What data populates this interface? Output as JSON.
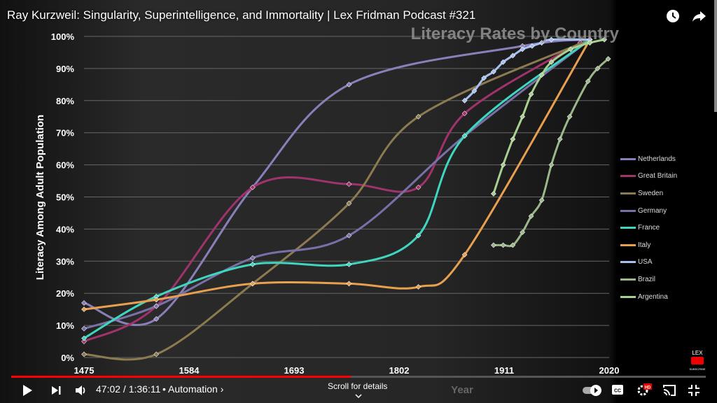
{
  "video_title": "Ray Kurzweil: Singularity, Superintelligence, and Immortality | Lex Fridman Podcast #321",
  "player": {
    "time": "47:02 / 1:36:11",
    "chapter": "• Automation ›",
    "scroll_hint": "Scroll for details",
    "progress": 0.489,
    "lex_badge": "LEX",
    "subscribe": "SUBSCRIBE"
  },
  "chart_data": {
    "type": "line",
    "title": "Literacy Rates by Country",
    "xlabel": "Year",
    "ylabel": "Literacy Among Adult Population",
    "xlim": [
      1475,
      2020
    ],
    "ylim": [
      0,
      100
    ],
    "xticks": [
      "1475",
      "1584",
      "1693",
      "1802",
      "1911",
      "2020"
    ],
    "yticks": [
      "0%",
      "10%",
      "20%",
      "30%",
      "40%",
      "50%",
      "60%",
      "70%",
      "80%",
      "90%",
      "100%"
    ],
    "legend": "right",
    "series": [
      {
        "name": "Netherlands",
        "color": "#8a7fb8",
        "points": [
          [
            1475,
            17
          ],
          [
            1550,
            12
          ],
          [
            1650,
            53
          ],
          [
            1750,
            85
          ],
          [
            1930,
            97
          ],
          [
            2000,
            99
          ]
        ]
      },
      {
        "name": "Great Britain",
        "color": "#a0336b",
        "points": [
          [
            1475,
            5
          ],
          [
            1550,
            16
          ],
          [
            1650,
            53
          ],
          [
            1750,
            54
          ],
          [
            1822,
            53
          ],
          [
            1870,
            76
          ],
          [
            1990,
            98
          ]
        ]
      },
      {
        "name": "Sweden",
        "color": "#8c7a50",
        "points": [
          [
            1475,
            1
          ],
          [
            1550,
            1
          ],
          [
            1650,
            23
          ],
          [
            1750,
            48
          ],
          [
            1822,
            75
          ],
          [
            2000,
            99
          ]
        ]
      },
      {
        "name": "Germany",
        "color": "#7a70a8",
        "points": [
          [
            1475,
            9
          ],
          [
            1550,
            16
          ],
          [
            1650,
            31
          ],
          [
            1750,
            38
          ],
          [
            1870,
            69
          ],
          [
            2000,
            99
          ]
        ]
      },
      {
        "name": "France",
        "color": "#3fd6c0",
        "points": [
          [
            1475,
            6
          ],
          [
            1550,
            19
          ],
          [
            1650,
            29
          ],
          [
            1750,
            29
          ],
          [
            1822,
            38
          ],
          [
            1870,
            69
          ],
          [
            2000,
            99
          ]
        ]
      },
      {
        "name": "Italy",
        "color": "#e8a050",
        "points": [
          [
            1475,
            15
          ],
          [
            1550,
            18
          ],
          [
            1650,
            23
          ],
          [
            1750,
            23
          ],
          [
            1822,
            22
          ],
          [
            1870,
            32
          ],
          [
            2000,
            99
          ]
        ]
      },
      {
        "name": "USA",
        "color": "#a8c0f0",
        "points": [
          [
            1870,
            80
          ],
          [
            1880,
            83
          ],
          [
            1890,
            87
          ],
          [
            1900,
            89
          ],
          [
            1910,
            92
          ],
          [
            1920,
            94
          ],
          [
            1930,
            96
          ],
          [
            1940,
            97
          ],
          [
            1950,
            98
          ],
          [
            1960,
            99
          ],
          [
            2000,
            99
          ]
        ]
      },
      {
        "name": "Brazil",
        "color": "#9ab88a",
        "points": [
          [
            1900,
            35
          ],
          [
            1910,
            35
          ],
          [
            1920,
            35
          ],
          [
            1930,
            39
          ],
          [
            1939,
            44
          ],
          [
            1950,
            49
          ],
          [
            1960,
            60
          ],
          [
            1969,
            68
          ],
          [
            1979,
            75
          ],
          [
            1998,
            86
          ],
          [
            2008,
            90
          ],
          [
            2019,
            93
          ]
        ]
      },
      {
        "name": "Argentina",
        "color": "#a8d090",
        "points": [
          [
            1900,
            51
          ],
          [
            1910,
            60
          ],
          [
            1920,
            68
          ],
          [
            1930,
            75
          ],
          [
            1939,
            82
          ],
          [
            1950,
            88
          ],
          [
            1960,
            92
          ],
          [
            1980,
            96
          ],
          [
            2000,
            98
          ],
          [
            2015,
            99
          ]
        ]
      }
    ]
  }
}
